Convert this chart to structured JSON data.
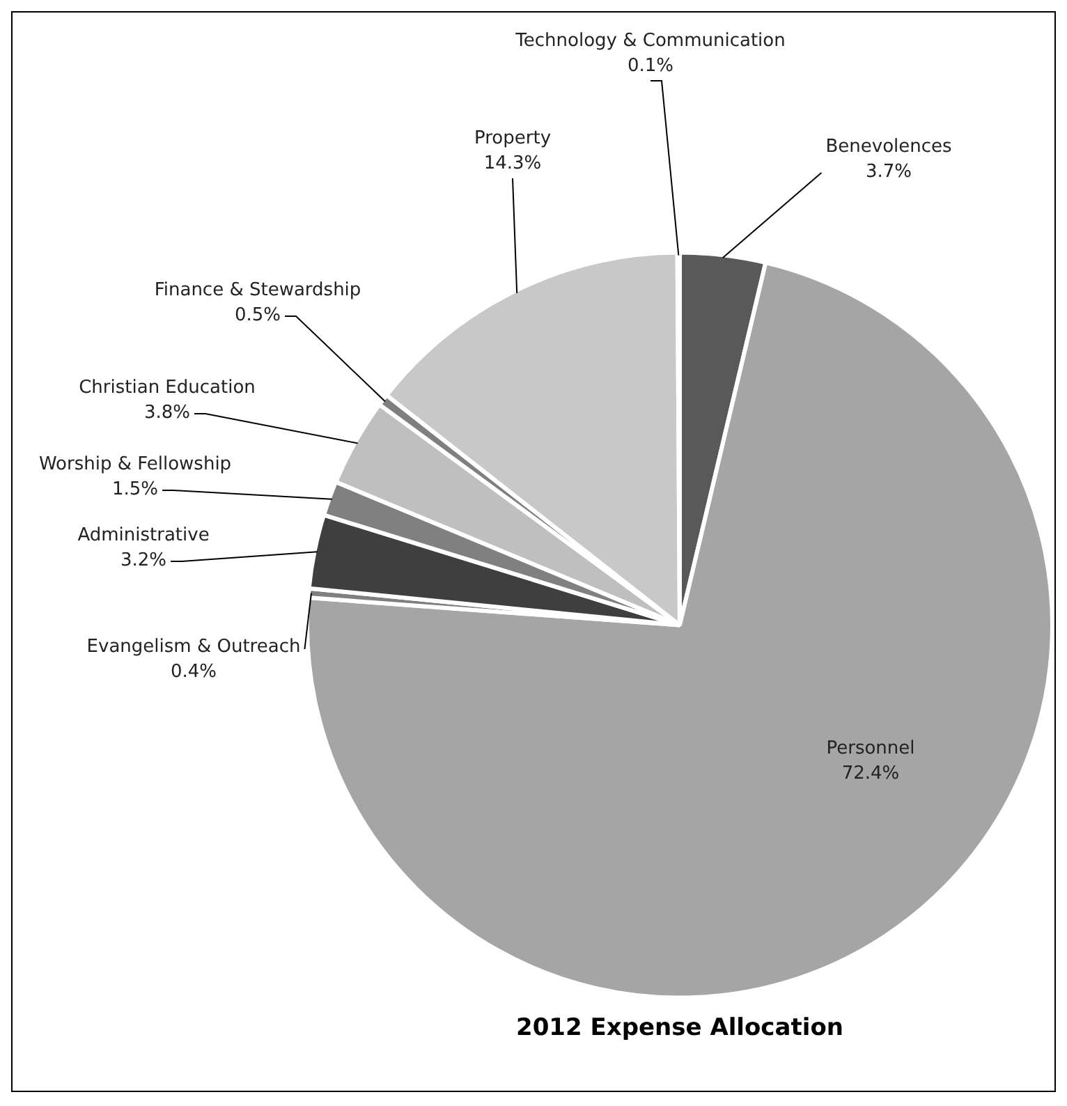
{
  "chart_data": {
    "type": "pie",
    "title": "2012 Expense Allocation",
    "categories": [
      "Benevolences",
      "Personnel",
      "Evangelism & Outreach",
      "Administrative",
      "Worship & Fellowship",
      "Christian Education",
      "Finance & Stewardship",
      "Property",
      "Technology & Communication"
    ],
    "values": [
      3.7,
      72.4,
      0.4,
      3.2,
      1.5,
      3.8,
      0.5,
      14.3,
      0.1
    ],
    "value_labels": [
      "3.7%",
      "72.4%",
      "0.4%",
      "3.2%",
      "1.5%",
      "3.8%",
      "0.5%",
      "14.3%",
      "0.1%"
    ],
    "colors": [
      "#595959",
      "#a5a5a5",
      "#7f7f7f",
      "#3f3f3f",
      "#808080",
      "#bfbfbf",
      "#7f7f7f",
      "#c8c8c8",
      "#d4d4d4"
    ],
    "legend": false
  }
}
